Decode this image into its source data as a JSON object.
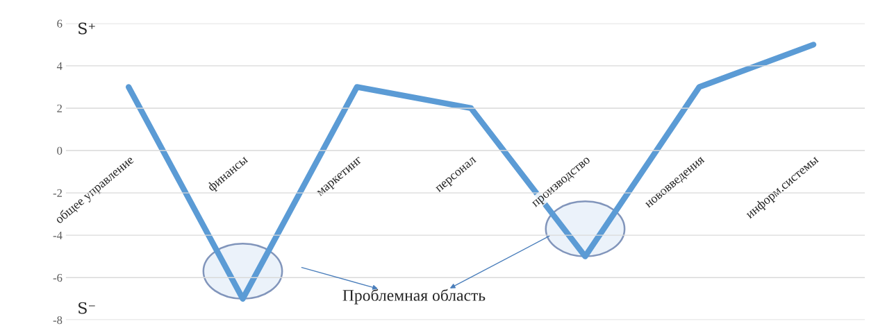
{
  "chart_data": {
    "type": "line",
    "categories": [
      "общее управление",
      "финансы",
      "маркетинг",
      "персонал",
      "производство",
      "нововведения",
      "информ.системы"
    ],
    "series": [
      {
        "color": "#5b9bd5",
        "values": [
          3,
          -7,
          3,
          2,
          -5,
          3,
          5
        ]
      }
    ],
    "ylim": [
      -8,
      6
    ],
    "yticks": [
      -8,
      -6,
      -4,
      -2,
      0,
      2,
      4,
      6
    ],
    "grid": "y",
    "marker": "none",
    "line_style": "solid",
    "annotations": [
      "S⁺",
      "S⁻",
      "Проблемная область"
    ]
  }
}
